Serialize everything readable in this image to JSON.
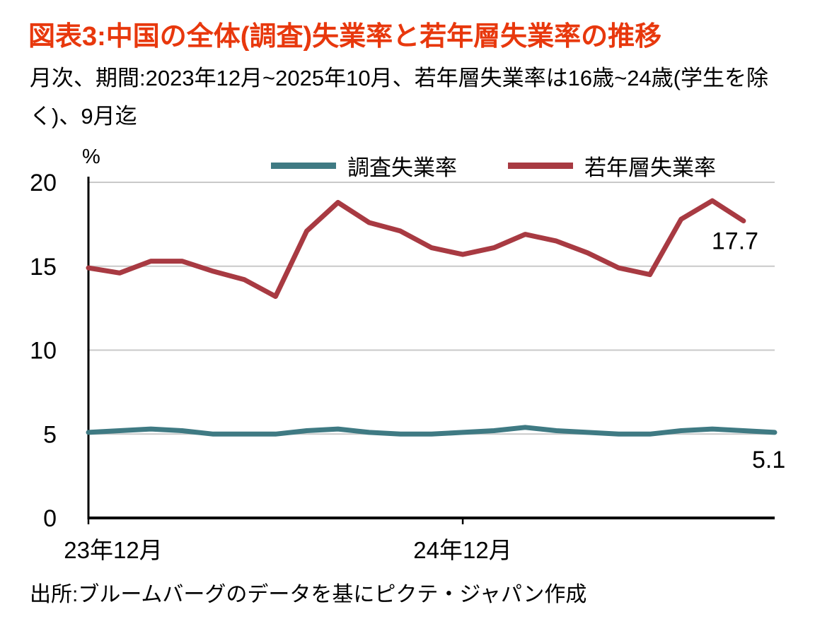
{
  "title": "図表3:中国の全体(調査)失業率と若年層失業率の推移",
  "subtitle": "月次、期間:2023年12月~2025年10月、若年層失業率は16歳~24歳(学生を除く)、9月迄",
  "source": "出所:ブルームバーグのデータを基にピクテ・ジャパン作成",
  "colors": {
    "title": "#e8380d",
    "grid": "#c9c9c9",
    "axis": "#000000",
    "text": "#000000"
  },
  "chart_data": {
    "type": "line",
    "unit_label": "%",
    "ylim": [
      0,
      20
    ],
    "yticks": [
      0,
      5,
      10,
      15,
      20
    ],
    "grid": "horizontal",
    "legend_position": "top",
    "x_tick_labels": [
      {
        "index": 0,
        "label": "23年12月"
      },
      {
        "index": 12,
        "label": "24年12月"
      }
    ],
    "series": [
      {
        "key": "survey",
        "name": "調査失業率",
        "color": "#3f7a83",
        "values": [
          5.1,
          5.2,
          5.3,
          5.2,
          5.0,
          5.0,
          5.0,
          5.2,
          5.3,
          5.1,
          5.0,
          5.0,
          5.1,
          5.2,
          5.4,
          5.2,
          5.1,
          5.0,
          5.0,
          5.2,
          5.3,
          5.2,
          5.1
        ],
        "end_label": "5.1"
      },
      {
        "key": "youth",
        "name": "若年層失業率",
        "color": "#a83a42",
        "values": [
          14.9,
          14.6,
          15.3,
          15.3,
          14.7,
          14.2,
          13.2,
          17.1,
          18.8,
          17.6,
          17.1,
          16.1,
          15.7,
          16.1,
          16.9,
          16.5,
          15.8,
          14.9,
          14.5,
          17.8,
          18.9,
          17.7
        ],
        "end_label": "17.7"
      }
    ]
  }
}
